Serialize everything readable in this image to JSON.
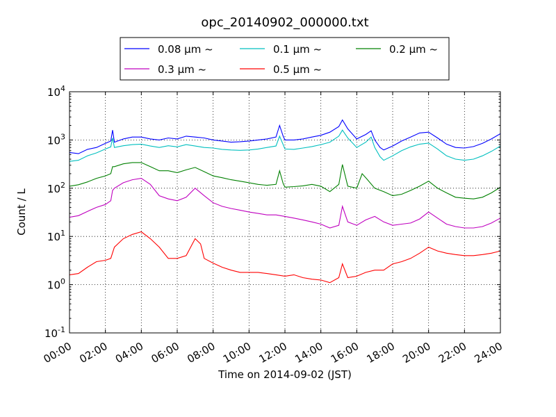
{
  "chart_data": {
    "type": "line",
    "title": "opc_20140902_000000.txt",
    "xlabel": "Time on 2014-09-02 (JST)",
    "ylabel": "Count / L",
    "xlim": [
      "2014-09-02 00:00",
      "2014-09-03 00:00"
    ],
    "ylim": [
      0.1,
      10000
    ],
    "yscale": "log",
    "grid": true,
    "legend_position": "top-center, above plot",
    "x_ticks": [
      "00:00",
      "02:00",
      "04:00",
      "06:00",
      "08:00",
      "10:00",
      "12:00",
      "14:00",
      "16:00",
      "18:00",
      "20:00",
      "22:00",
      "24:00"
    ],
    "y_ticks": [
      {
        "base": "10",
        "exp": "-1",
        "value": 0.1
      },
      {
        "base": "10",
        "exp": "0",
        "value": 1
      },
      {
        "base": "10",
        "exp": "1",
        "value": 10
      },
      {
        "base": "10",
        "exp": "2",
        "value": 100
      },
      {
        "base": "10",
        "exp": "3",
        "value": 1000
      },
      {
        "base": "10",
        "exp": "4",
        "value": 10000
      }
    ],
    "series": [
      {
        "name": "0.08 μm ~",
        "color": "#0000ff",
        "points": [
          [
            0,
            550
          ],
          [
            0.5,
            520
          ],
          [
            1,
            640
          ],
          [
            1.5,
            700
          ],
          [
            2,
            850
          ],
          [
            2.3,
            950
          ],
          [
            2.4,
            1600
          ],
          [
            2.5,
            900
          ],
          [
            3,
            1050
          ],
          [
            3.5,
            1150
          ],
          [
            4,
            1150
          ],
          [
            4.5,
            1050
          ],
          [
            5,
            1000
          ],
          [
            5.5,
            1100
          ],
          [
            6,
            1050
          ],
          [
            6.5,
            1200
          ],
          [
            7,
            1150
          ],
          [
            7.5,
            1100
          ],
          [
            8,
            1000
          ],
          [
            8.5,
            950
          ],
          [
            9,
            900
          ],
          [
            9.5,
            920
          ],
          [
            10,
            950
          ],
          [
            10.5,
            1000
          ],
          [
            11,
            1050
          ],
          [
            11.5,
            1150
          ],
          [
            11.7,
            2000
          ],
          [
            11.9,
            1200
          ],
          [
            12,
            1000
          ],
          [
            12.5,
            1000
          ],
          [
            13,
            1050
          ],
          [
            13.5,
            1150
          ],
          [
            14,
            1250
          ],
          [
            14.5,
            1450
          ],
          [
            15,
            1900
          ],
          [
            15.2,
            2600
          ],
          [
            15.5,
            1700
          ],
          [
            16,
            1050
          ],
          [
            16.5,
            1300
          ],
          [
            16.8,
            1550
          ],
          [
            17,
            1000
          ],
          [
            17.3,
            700
          ],
          [
            17.5,
            620
          ],
          [
            18,
            750
          ],
          [
            18.5,
            950
          ],
          [
            19,
            1150
          ],
          [
            19.5,
            1400
          ],
          [
            20,
            1450
          ],
          [
            20.5,
            1100
          ],
          [
            21,
            820
          ],
          [
            21.5,
            700
          ],
          [
            22,
            680
          ],
          [
            22.5,
            730
          ],
          [
            23,
            850
          ],
          [
            23.5,
            1050
          ],
          [
            24,
            1350
          ]
        ]
      },
      {
        "name": "0.1 μm ~",
        "color": "#00bfbf",
        "points": [
          [
            0,
            360
          ],
          [
            0.5,
            380
          ],
          [
            1,
            470
          ],
          [
            1.5,
            540
          ],
          [
            2,
            650
          ],
          [
            2.3,
            720
          ],
          [
            2.4,
            1100
          ],
          [
            2.5,
            700
          ],
          [
            3,
            760
          ],
          [
            3.5,
            800
          ],
          [
            4,
            820
          ],
          [
            4.5,
            750
          ],
          [
            5,
            700
          ],
          [
            5.5,
            760
          ],
          [
            6,
            720
          ],
          [
            6.5,
            800
          ],
          [
            7,
            750
          ],
          [
            7.5,
            700
          ],
          [
            8,
            680
          ],
          [
            8.5,
            640
          ],
          [
            9,
            620
          ],
          [
            9.5,
            610
          ],
          [
            10,
            620
          ],
          [
            10.5,
            650
          ],
          [
            11,
            700
          ],
          [
            11.5,
            750
          ],
          [
            11.7,
            1200
          ],
          [
            11.9,
            800
          ],
          [
            12,
            650
          ],
          [
            12.5,
            640
          ],
          [
            13,
            680
          ],
          [
            13.5,
            730
          ],
          [
            14,
            800
          ],
          [
            14.5,
            900
          ],
          [
            15,
            1200
          ],
          [
            15.2,
            1600
          ],
          [
            15.5,
            1100
          ],
          [
            16,
            700
          ],
          [
            16.5,
            900
          ],
          [
            16.8,
            1150
          ],
          [
            17,
            700
          ],
          [
            17.3,
            450
          ],
          [
            17.5,
            380
          ],
          [
            18,
            470
          ],
          [
            18.5,
            600
          ],
          [
            19,
            720
          ],
          [
            19.5,
            820
          ],
          [
            20,
            860
          ],
          [
            20.5,
            650
          ],
          [
            21,
            470
          ],
          [
            21.5,
            400
          ],
          [
            22,
            380
          ],
          [
            22.5,
            400
          ],
          [
            23,
            470
          ],
          [
            23.5,
            580
          ],
          [
            24,
            750
          ]
        ]
      },
      {
        "name": "0.2 μm ~",
        "color": "#008000",
        "points": [
          [
            0,
            110
          ],
          [
            0.5,
            118
          ],
          [
            1,
            135
          ],
          [
            1.5,
            160
          ],
          [
            2,
            180
          ],
          [
            2.3,
            200
          ],
          [
            2.4,
            280
          ],
          [
            2.5,
            280
          ],
          [
            3,
            320
          ],
          [
            3.5,
            340
          ],
          [
            4,
            340
          ],
          [
            4.5,
            280
          ],
          [
            5,
            230
          ],
          [
            5.5,
            230
          ],
          [
            6,
            210
          ],
          [
            6.5,
            240
          ],
          [
            7,
            270
          ],
          [
            7.5,
            220
          ],
          [
            8,
            180
          ],
          [
            8.5,
            165
          ],
          [
            9,
            150
          ],
          [
            9.5,
            140
          ],
          [
            10,
            130
          ],
          [
            10.5,
            120
          ],
          [
            11,
            115
          ],
          [
            11.5,
            120
          ],
          [
            11.7,
            230
          ],
          [
            11.9,
            125
          ],
          [
            12,
            105
          ],
          [
            12.5,
            108
          ],
          [
            13,
            112
          ],
          [
            13.5,
            120
          ],
          [
            14,
            110
          ],
          [
            14.5,
            85
          ],
          [
            15,
            120
          ],
          [
            15.2,
            310
          ],
          [
            15.5,
            110
          ],
          [
            16,
            100
          ],
          [
            16.3,
            200
          ],
          [
            16.6,
            150
          ],
          [
            17,
            100
          ],
          [
            17.5,
            85
          ],
          [
            18,
            70
          ],
          [
            18.5,
            75
          ],
          [
            19,
            90
          ],
          [
            19.5,
            110
          ],
          [
            20,
            140
          ],
          [
            20.5,
            100
          ],
          [
            21,
            80
          ],
          [
            21.5,
            65
          ],
          [
            22,
            62
          ],
          [
            22.5,
            60
          ],
          [
            23,
            65
          ],
          [
            23.5,
            80
          ],
          [
            24,
            105
          ]
        ]
      },
      {
        "name": "0.3 μm ~",
        "color": "#bf00bf",
        "points": [
          [
            0,
            25
          ],
          [
            0.5,
            27
          ],
          [
            1,
            33
          ],
          [
            1.5,
            40
          ],
          [
            2,
            46
          ],
          [
            2.3,
            55
          ],
          [
            2.4,
            90
          ],
          [
            2.5,
            100
          ],
          [
            3,
            130
          ],
          [
            3.5,
            150
          ],
          [
            4,
            160
          ],
          [
            4.5,
            120
          ],
          [
            5,
            70
          ],
          [
            5.5,
            60
          ],
          [
            6,
            55
          ],
          [
            6.5,
            65
          ],
          [
            7,
            100
          ],
          [
            7.5,
            70
          ],
          [
            8,
            50
          ],
          [
            8.5,
            42
          ],
          [
            9,
            38
          ],
          [
            9.5,
            35
          ],
          [
            10,
            32
          ],
          [
            10.5,
            30
          ],
          [
            11,
            28
          ],
          [
            11.5,
            28
          ],
          [
            12,
            26
          ],
          [
            12.5,
            24
          ],
          [
            13,
            22
          ],
          [
            13.5,
            20
          ],
          [
            14,
            18
          ],
          [
            14.5,
            15
          ],
          [
            15,
            17
          ],
          [
            15.2,
            42
          ],
          [
            15.5,
            20
          ],
          [
            16,
            17
          ],
          [
            16.5,
            22
          ],
          [
            17,
            26
          ],
          [
            17.5,
            20
          ],
          [
            18,
            17
          ],
          [
            18.5,
            18
          ],
          [
            19,
            19
          ],
          [
            19.5,
            23
          ],
          [
            20,
            32
          ],
          [
            20.5,
            24
          ],
          [
            21,
            18
          ],
          [
            21.5,
            16
          ],
          [
            22,
            15
          ],
          [
            22.5,
            15
          ],
          [
            23,
            16
          ],
          [
            23.5,
            19
          ],
          [
            24,
            24
          ]
        ]
      },
      {
        "name": "0.5 μm ~",
        "color": "#ff0000",
        "points": [
          [
            0,
            1.6
          ],
          [
            0.5,
            1.7
          ],
          [
            1,
            2.3
          ],
          [
            1.5,
            3
          ],
          [
            2,
            3.2
          ],
          [
            2.3,
            3.5
          ],
          [
            2.5,
            6
          ],
          [
            3,
            9
          ],
          [
            3.5,
            11
          ],
          [
            4,
            12.5
          ],
          [
            4.5,
            9
          ],
          [
            5,
            6
          ],
          [
            5.5,
            3.5
          ],
          [
            6,
            3.5
          ],
          [
            6.5,
            4
          ],
          [
            7,
            9
          ],
          [
            7.3,
            7
          ],
          [
            7.5,
            3.5
          ],
          [
            8,
            2.8
          ],
          [
            8.5,
            2.3
          ],
          [
            9,
            2
          ],
          [
            9.5,
            1.8
          ],
          [
            10,
            1.8
          ],
          [
            10.5,
            1.8
          ],
          [
            11,
            1.7
          ],
          [
            11.5,
            1.6
          ],
          [
            12,
            1.5
          ],
          [
            12.5,
            1.6
          ],
          [
            13,
            1.4
          ],
          [
            13.5,
            1.3
          ],
          [
            14,
            1.25
          ],
          [
            14.5,
            1.1
          ],
          [
            15,
            1.4
          ],
          [
            15.2,
            2.7
          ],
          [
            15.5,
            1.4
          ],
          [
            16,
            1.5
          ],
          [
            16.5,
            1.8
          ],
          [
            17,
            2
          ],
          [
            17.5,
            2
          ],
          [
            18,
            2.7
          ],
          [
            18.5,
            3
          ],
          [
            19,
            3.5
          ],
          [
            19.5,
            4.5
          ],
          [
            20,
            6
          ],
          [
            20.5,
            5
          ],
          [
            21,
            4.5
          ],
          [
            21.5,
            4.2
          ],
          [
            22,
            4
          ],
          [
            22.5,
            4
          ],
          [
            23,
            4.2
          ],
          [
            23.5,
            4.5
          ],
          [
            24,
            5
          ]
        ]
      }
    ]
  }
}
